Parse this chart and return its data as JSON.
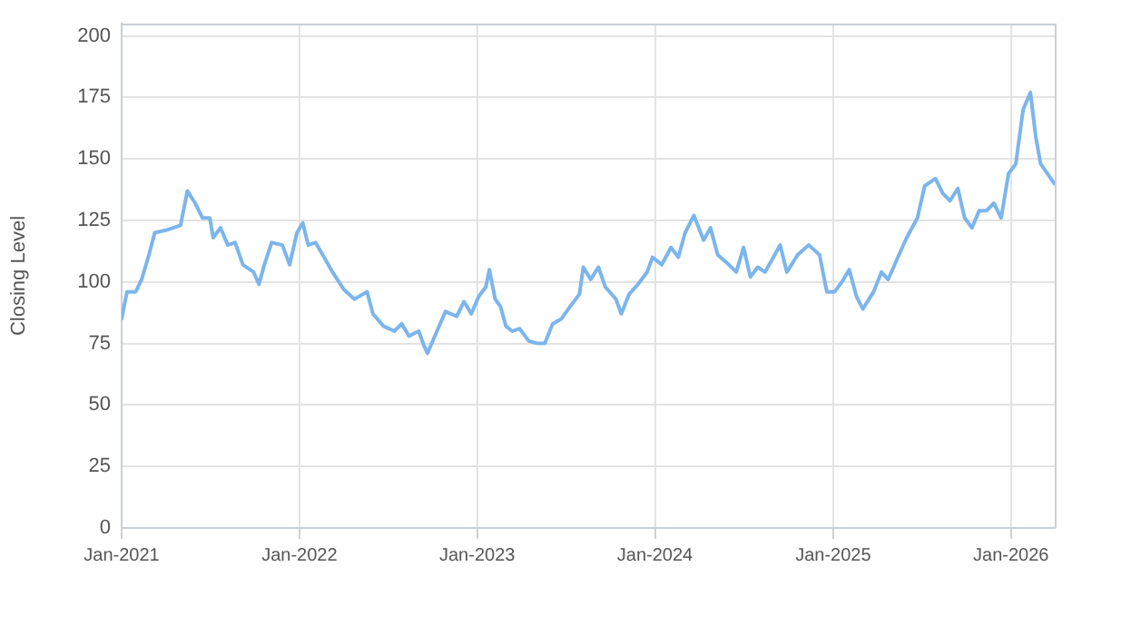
{
  "chart_data": {
    "type": "line",
    "ylabel": "Closing Level",
    "xlim": [
      "2021-01-01",
      "2026-04-01"
    ],
    "xticks": [
      {
        "value": "2021-01-01",
        "label": "Jan-2021"
      },
      {
        "value": "2022-01-01",
        "label": "Jan-2022"
      },
      {
        "value": "2023-01-01",
        "label": "Jan-2023"
      },
      {
        "value": "2024-01-01",
        "label": "Jan-2024"
      },
      {
        "value": "2025-01-01",
        "label": "Jan-2025"
      },
      {
        "value": "2026-01-01",
        "label": "Jan-2026"
      }
    ],
    "ylim": [
      0,
      205
    ],
    "yticks": [
      0,
      25,
      50,
      75,
      100,
      125,
      150,
      175,
      200
    ],
    "grid": true,
    "legend": false,
    "marker": "none",
    "line_style": "solid",
    "x": [
      "2021-01-01",
      "2021-01-12",
      "2021-01-30",
      "2021-02-11",
      "2021-02-26",
      "2021-03-10",
      "2021-04-02",
      "2021-05-02",
      "2021-05-16",
      "2021-06-01",
      "2021-06-16",
      "2021-07-01",
      "2021-07-08",
      "2021-07-23",
      "2021-08-07",
      "2021-08-22",
      "2021-09-07",
      "2021-09-29",
      "2021-10-10",
      "2021-10-21",
      "2021-11-05",
      "2021-11-27",
      "2021-12-12",
      "2021-12-27",
      "2022-01-08",
      "2022-01-19",
      "2022-02-03",
      "2022-02-18",
      "2022-03-10",
      "2022-04-02",
      "2022-04-24",
      "2022-05-20",
      "2022-06-01",
      "2022-06-23",
      "2022-07-15",
      "2022-07-30",
      "2022-08-14",
      "2022-09-03",
      "2022-09-14",
      "2022-09-21",
      "2022-10-06",
      "2022-10-28",
      "2022-11-20",
      "2022-12-05",
      "2022-12-20",
      "2023-01-04",
      "2023-01-19",
      "2023-01-26",
      "2023-02-07",
      "2023-02-18",
      "2023-03-01",
      "2023-03-14",
      "2023-03-29",
      "2023-04-17",
      "2023-05-05",
      "2023-05-20",
      "2023-06-05",
      "2023-06-23",
      "2023-07-11",
      "2023-07-30",
      "2023-08-07",
      "2023-08-22",
      "2023-09-07",
      "2023-09-21",
      "2023-10-13",
      "2023-10-24",
      "2023-11-09",
      "2023-11-27",
      "2023-12-16",
      "2023-12-27",
      "2024-01-15",
      "2024-02-03",
      "2024-02-18",
      "2024-03-03",
      "2024-03-21",
      "2024-04-10",
      "2024-04-24",
      "2024-05-09",
      "2024-06-01",
      "2024-06-16",
      "2024-07-01",
      "2024-07-15",
      "2024-07-30",
      "2024-08-14",
      "2024-09-03",
      "2024-09-14",
      "2024-09-28",
      "2024-10-20",
      "2024-11-12",
      "2024-12-04",
      "2024-12-19",
      "2025-01-04",
      "2025-01-19",
      "2025-02-03",
      "2025-02-18",
      "2025-03-03",
      "2025-03-25",
      "2025-04-10",
      "2025-04-24",
      "2025-05-16",
      "2025-06-01",
      "2025-06-23",
      "2025-07-08",
      "2025-07-30",
      "2025-08-14",
      "2025-08-29",
      "2025-09-14",
      "2025-09-28",
      "2025-10-13",
      "2025-10-28",
      "2025-11-12",
      "2025-11-27",
      "2025-12-12",
      "2025-12-27",
      "2026-01-11",
      "2026-01-26",
      "2026-02-10",
      "2026-02-21",
      "2026-03-03",
      "2026-03-17",
      "2026-03-31"
    ],
    "series": [
      {
        "color": "#7cb5ec",
        "values": [
          85,
          96,
          96,
          101,
          111,
          120,
          121,
          123,
          137,
          132,
          126,
          126,
          118,
          122,
          115,
          116,
          107,
          104,
          99,
          107,
          116,
          115,
          107,
          120,
          124,
          115,
          116,
          111,
          104,
          97,
          93,
          96,
          87,
          82,
          80,
          83,
          78,
          80,
          74,
          71,
          78,
          88,
          86,
          92,
          87,
          94,
          98,
          105,
          93,
          90,
          82,
          80,
          81,
          76,
          75,
          75,
          83,
          85,
          90,
          95,
          106,
          101,
          106,
          98,
          93,
          87,
          95,
          99,
          104,
          110,
          107,
          114,
          110,
          120,
          127,
          117,
          122,
          111,
          107,
          104,
          114,
          102,
          106,
          104,
          111,
          115,
          104,
          111,
          115,
          111,
          96,
          96,
          100,
          105,
          94,
          89,
          96,
          104,
          101,
          111,
          118,
          126,
          139,
          142,
          136,
          133,
          138,
          126,
          122,
          129,
          129,
          132,
          126,
          144,
          148,
          170,
          177,
          159,
          148,
          144,
          140
        ]
      }
    ]
  }
}
